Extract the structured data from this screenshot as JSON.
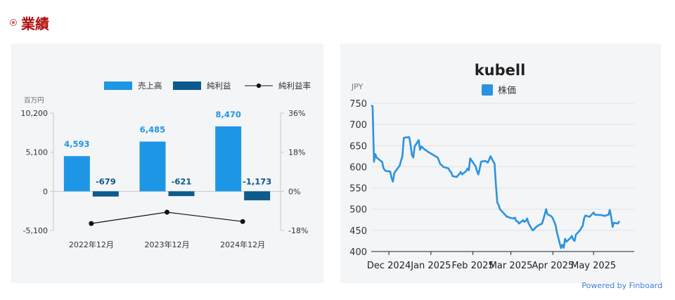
{
  "section_title": "業績",
  "footer": {
    "powered_by": "Powered by Finboard"
  },
  "chart_data": [
    {
      "type": "bar",
      "title": "",
      "categories": [
        "2022年12月",
        "2023年12月",
        "2024年12月"
      ],
      "unit_label": "百万円",
      "left_axis": {
        "ticks": [
          "10,200",
          "5,100",
          "0",
          "-5,100"
        ],
        "ylim": [
          -5100,
          10200
        ]
      },
      "right_axis": {
        "ticks": [
          "36%",
          "18%",
          "0%",
          "-18%"
        ],
        "ylim": [
          -18,
          36
        ]
      },
      "legend": [
        "売上高",
        "純利益",
        "純利益率"
      ],
      "colors": {
        "sales": "#1e96e6",
        "profit": "#0d5a8c",
        "margin": "#111111"
      },
      "series": [
        {
          "name": "売上高",
          "type": "bar",
          "values": [
            4593,
            6485,
            8470
          ],
          "labels": [
            "4,593",
            "6,485",
            "8,470"
          ]
        },
        {
          "name": "純利益",
          "type": "bar",
          "values": [
            -679,
            -621,
            -1173
          ],
          "labels": [
            "-679",
            "-621",
            "-1,173"
          ]
        },
        {
          "name": "純利益率",
          "type": "line",
          "axis": "right",
          "values": [
            -14.8,
            -9.6,
            -13.9
          ]
        }
      ]
    },
    {
      "type": "line",
      "title": "kubell",
      "ylabel": "JPY",
      "legend": [
        "株価"
      ],
      "color": "#2a93e0",
      "y_ticks": [
        750,
        700,
        650,
        600,
        550,
        500,
        450,
        400
      ],
      "ylim": [
        400,
        750
      ],
      "xlim": [
        "2024-11-18",
        "2025-05-31"
      ],
      "x_ticks": [
        {
          "date": "2024-12-01",
          "label": "Dec 2024"
        },
        {
          "date": "2025-01-01",
          "label": "Jan 2025"
        },
        {
          "date": "2025-02-01",
          "label": "Feb 2025"
        },
        {
          "date": "2025-03-01",
          "label": "Mar 2025"
        },
        {
          "date": "2025-04-01",
          "label": "Apr 2025"
        },
        {
          "date": "2025-05-01",
          "label": "May 2025"
        }
      ],
      "series": [
        {
          "name": "株価",
          "points": [
            [
              "2024-11-18",
              745
            ],
            [
              "2024-11-19",
              743
            ],
            [
              "2024-11-20",
              612
            ],
            [
              "2024-11-21",
              630
            ],
            [
              "2024-11-22",
              622
            ],
            [
              "2024-11-25",
              614
            ],
            [
              "2024-11-26",
              612
            ],
            [
              "2024-11-27",
              597
            ],
            [
              "2024-11-28",
              592
            ],
            [
              "2024-11-29",
              590
            ],
            [
              "2024-12-02",
              589
            ],
            [
              "2024-12-03",
              574
            ],
            [
              "2024-12-04",
              565
            ],
            [
              "2024-12-05",
              585
            ],
            [
              "2024-12-06",
              590
            ],
            [
              "2024-12-09",
              603
            ],
            [
              "2024-12-10",
              615
            ],
            [
              "2024-12-11",
              625
            ],
            [
              "2024-12-12",
              668
            ],
            [
              "2024-12-13",
              669
            ],
            [
              "2024-12-16",
              670
            ],
            [
              "2024-12-17",
              652
            ],
            [
              "2024-12-18",
              628
            ],
            [
              "2024-12-19",
              622
            ],
            [
              "2024-12-20",
              648
            ],
            [
              "2024-12-23",
              663
            ],
            [
              "2024-12-24",
              640
            ],
            [
              "2024-12-25",
              648
            ],
            [
              "2024-12-26",
              645
            ],
            [
              "2024-12-27",
              642
            ],
            [
              "2024-12-30",
              635
            ],
            [
              "2025-01-06",
              622
            ],
            [
              "2025-01-07",
              614
            ],
            [
              "2025-01-08",
              606
            ],
            [
              "2025-01-09",
              604
            ],
            [
              "2025-01-10",
              600
            ],
            [
              "2025-01-14",
              596
            ],
            [
              "2025-01-15",
              590
            ],
            [
              "2025-01-16",
              587
            ],
            [
              "2025-01-17",
              578
            ],
            [
              "2025-01-20",
              576
            ],
            [
              "2025-01-21",
              580
            ],
            [
              "2025-01-22",
              583
            ],
            [
              "2025-01-23",
              588
            ],
            [
              "2025-01-24",
              582
            ],
            [
              "2025-01-27",
              590
            ],
            [
              "2025-01-28",
              596
            ],
            [
              "2025-01-29",
              592
            ],
            [
              "2025-01-30",
              620
            ],
            [
              "2025-01-31",
              615
            ],
            [
              "2025-02-03",
              601
            ],
            [
              "2025-02-04",
              590
            ],
            [
              "2025-02-05",
              582
            ],
            [
              "2025-02-06",
              595
            ],
            [
              "2025-02-07",
              612
            ],
            [
              "2025-02-10",
              614
            ],
            [
              "2025-02-12",
              610
            ],
            [
              "2025-02-13",
              617
            ],
            [
              "2025-02-14",
              625
            ],
            [
              "2025-02-17",
              607
            ],
            [
              "2025-02-18",
              555
            ],
            [
              "2025-02-19",
              515
            ],
            [
              "2025-02-20",
              510
            ],
            [
              "2025-02-21",
              500
            ],
            [
              "2025-02-25",
              486
            ],
            [
              "2025-02-26",
              482
            ],
            [
              "2025-02-27",
              482
            ],
            [
              "2025-02-28",
              480
            ],
            [
              "2025-03-03",
              478
            ],
            [
              "2025-03-04",
              480
            ],
            [
              "2025-03-05",
              472
            ],
            [
              "2025-03-06",
              471
            ],
            [
              "2025-03-07",
              466
            ],
            [
              "2025-03-10",
              474
            ],
            [
              "2025-03-11",
              470
            ],
            [
              "2025-03-12",
              472
            ],
            [
              "2025-03-13",
              478
            ],
            [
              "2025-03-14",
              467
            ],
            [
              "2025-03-17",
              450
            ],
            [
              "2025-03-18",
              452
            ],
            [
              "2025-03-19",
              456
            ],
            [
              "2025-03-21",
              461
            ],
            [
              "2025-03-24",
              466
            ],
            [
              "2025-03-25",
              476
            ],
            [
              "2025-03-26",
              488
            ],
            [
              "2025-03-27",
              500
            ],
            [
              "2025-03-28",
              488
            ],
            [
              "2025-03-31",
              483
            ],
            [
              "2025-04-01",
              478
            ],
            [
              "2025-04-02",
              470
            ],
            [
              "2025-04-03",
              462
            ],
            [
              "2025-04-04",
              445
            ],
            [
              "2025-04-07",
              408
            ],
            [
              "2025-04-08",
              416
            ],
            [
              "2025-04-09",
              409
            ],
            [
              "2025-04-10",
              430
            ],
            [
              "2025-04-11",
              423
            ],
            [
              "2025-04-14",
              432
            ],
            [
              "2025-04-15",
              437
            ],
            [
              "2025-04-16",
              428
            ],
            [
              "2025-04-17",
              425
            ],
            [
              "2025-04-18",
              440
            ],
            [
              "2025-04-21",
              450
            ],
            [
              "2025-04-22",
              456
            ],
            [
              "2025-04-23",
              460
            ],
            [
              "2025-04-24",
              478
            ],
            [
              "2025-04-25",
              485
            ],
            [
              "2025-04-28",
              482
            ],
            [
              "2025-05-01",
              492
            ],
            [
              "2025-05-02",
              487
            ],
            [
              "2025-05-07",
              486
            ],
            [
              "2025-05-08",
              485
            ],
            [
              "2025-05-09",
              484
            ],
            [
              "2025-05-12",
              487
            ],
            [
              "2025-05-13",
              498
            ],
            [
              "2025-05-14",
              482
            ],
            [
              "2025-05-15",
              458
            ],
            [
              "2025-05-16",
              468
            ],
            [
              "2025-05-19",
              466
            ],
            [
              "2025-05-20",
              472
            ]
          ]
        }
      ]
    }
  ]
}
